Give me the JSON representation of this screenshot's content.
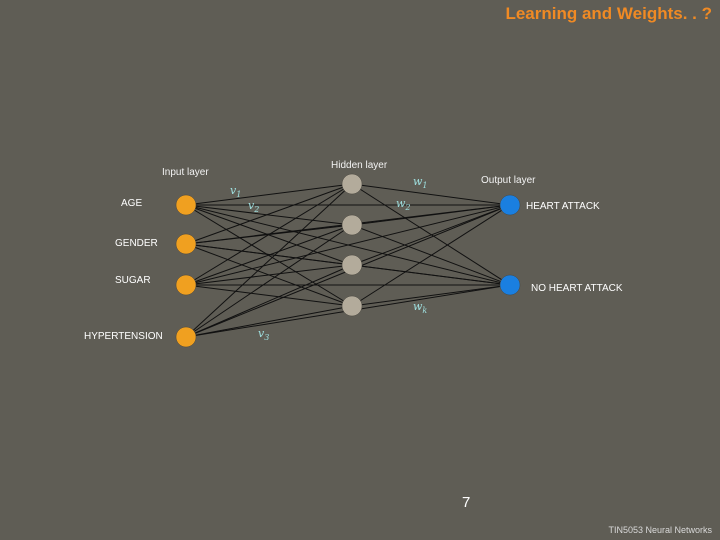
{
  "title": "Learning and Weights. . ?",
  "layers": {
    "input_label": "Input layer",
    "hidden_label": "Hidden layer",
    "output_label": "Output layer"
  },
  "inputs": [
    "AGE",
    "GENDER",
    "SUGAR",
    "HYPERTENSION"
  ],
  "outputs": [
    "HEART ATTACK",
    "NO HEART ATTACK"
  ],
  "hidden_count": 4,
  "weights": {
    "v1": {
      "sym": "v",
      "sub": "1"
    },
    "v2": {
      "sym": "v",
      "sub": "2"
    },
    "v3": {
      "sym": "v",
      "sub": "3"
    },
    "w1": {
      "sym": "w",
      "sub": "1"
    },
    "w2": {
      "sym": "w",
      "sub": "2"
    },
    "wk": {
      "sym": "w",
      "sub": "k"
    }
  },
  "colors": {
    "background": "#5f5d55",
    "title": "#f08a24",
    "input_node": "#f0a020",
    "hidden_node": "#b3ab9b",
    "output_node": "#1a7fe0",
    "edge": "#111111",
    "weight_text": "#9fe0e0"
  },
  "page_number": "7",
  "footer": "TIN5053 Neural Networks"
}
